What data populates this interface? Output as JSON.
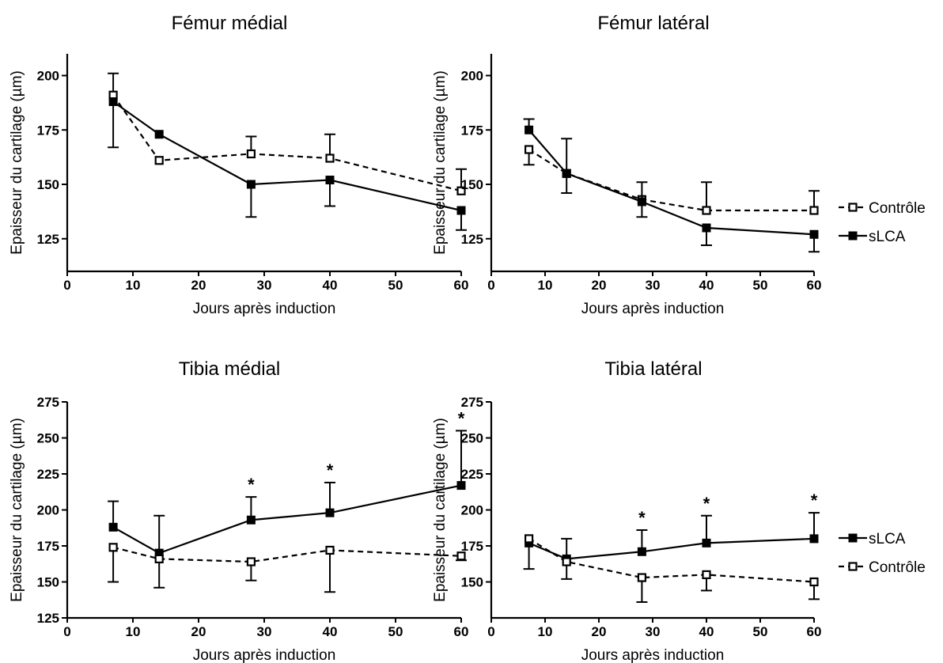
{
  "chart_data": [
    {
      "type": "line",
      "title": "Fémur médial",
      "xlabel": "Jours après induction",
      "ylabel": "Epaisseur du cartilage (µm)",
      "xlim": [
        0,
        60
      ],
      "ylim": [
        110,
        210
      ],
      "xticks": [
        0,
        10,
        20,
        30,
        40,
        50,
        60
      ],
      "yticks": [
        125,
        150,
        175,
        200
      ],
      "series": [
        {
          "name": "Contrôle",
          "marker": "open-square",
          "line": "dashed",
          "x": [
            7,
            14,
            28,
            40,
            60
          ],
          "y": [
            191,
            161,
            164,
            162,
            147
          ],
          "err_up": [
            10,
            0,
            8,
            11,
            10
          ],
          "err_down": [
            0,
            0,
            0,
            0,
            0
          ]
        },
        {
          "name": "sLCA",
          "marker": "filled-square",
          "line": "solid",
          "x": [
            7,
            14,
            28,
            40,
            60
          ],
          "y": [
            188,
            173,
            150,
            152,
            138
          ],
          "err_up": [
            0,
            0,
            0,
            0,
            0
          ],
          "err_down": [
            21,
            0,
            15,
            12,
            9
          ]
        }
      ],
      "annotations": []
    },
    {
      "type": "line",
      "title": "Fémur latéral",
      "xlabel": "Jours après induction",
      "ylabel": "Epaisseur du cartilage (µm)",
      "xlim": [
        0,
        60
      ],
      "ylim": [
        110,
        210
      ],
      "xticks": [
        0,
        10,
        20,
        30,
        40,
        50,
        60
      ],
      "yticks": [
        125,
        150,
        175,
        200
      ],
      "series": [
        {
          "name": "Contrôle",
          "marker": "open-square",
          "line": "dashed",
          "x": [
            7,
            14,
            28,
            40,
            60
          ],
          "y": [
            166,
            155,
            143,
            138,
            138
          ],
          "err_up": [
            0,
            0,
            0,
            13,
            9
          ],
          "err_down": [
            7,
            0,
            0,
            0,
            0
          ]
        },
        {
          "name": "sLCA",
          "marker": "filled-square",
          "line": "solid",
          "x": [
            7,
            14,
            28,
            40,
            60
          ],
          "y": [
            175,
            155,
            142,
            130,
            127
          ],
          "err_up": [
            5,
            16,
            9,
            0,
            0
          ],
          "err_down": [
            0,
            9,
            7,
            8,
            8
          ]
        }
      ],
      "annotations": []
    },
    {
      "type": "line",
      "title": "Tibia médial",
      "xlabel": "Jours après induction",
      "ylabel": "Epaisseur du cartilage (µm)",
      "xlim": [
        0,
        60
      ],
      "ylim": [
        125,
        275
      ],
      "xticks": [
        0,
        10,
        20,
        30,
        40,
        50,
        60
      ],
      "yticks": [
        125,
        150,
        175,
        200,
        225,
        250,
        275
      ],
      "series": [
        {
          "name": "sLCA",
          "marker": "filled-square",
          "line": "solid",
          "x": [
            7,
            14,
            28,
            40,
            60
          ],
          "y": [
            188,
            170,
            193,
            198,
            217
          ],
          "err_up": [
            18,
            26,
            16,
            21,
            38
          ],
          "err_down": [
            0,
            0,
            0,
            0,
            0
          ]
        },
        {
          "name": "Contrôle",
          "marker": "open-square",
          "line": "dashed",
          "x": [
            7,
            14,
            28,
            40,
            60
          ],
          "y": [
            174,
            166,
            164,
            172,
            168
          ],
          "err_up": [
            0,
            0,
            0,
            0,
            0
          ],
          "err_down": [
            24,
            20,
            13,
            29,
            3
          ]
        }
      ],
      "annotations": [
        {
          "text": "*",
          "x": 28
        },
        {
          "text": "*",
          "x": 40
        },
        {
          "text": "*",
          "x": 60
        }
      ]
    },
    {
      "type": "line",
      "title": "Tibia latéral",
      "xlabel": "Jours après induction",
      "ylabel": "Epaisseur du cartilage (µm)",
      "xlim": [
        0,
        60
      ],
      "ylim": [
        125,
        275
      ],
      "xticks": [
        0,
        10,
        20,
        30,
        40,
        50,
        60
      ],
      "yticks": [
        150,
        175,
        200,
        225,
        250,
        275
      ],
      "series": [
        {
          "name": "sLCA",
          "marker": "filled-square",
          "line": "solid",
          "x": [
            7,
            14,
            28,
            40,
            60
          ],
          "y": [
            177,
            166,
            171,
            177,
            180
          ],
          "err_up": [
            0,
            14,
            15,
            19,
            18
          ],
          "err_down": [
            18,
            0,
            0,
            0,
            0
          ]
        },
        {
          "name": "Contrôle",
          "marker": "open-square",
          "line": "dashed",
          "x": [
            7,
            14,
            28,
            40,
            60
          ],
          "y": [
            180,
            164,
            153,
            155,
            150
          ],
          "err_up": [
            0,
            0,
            0,
            0,
            0
          ],
          "err_down": [
            0,
            12,
            17,
            11,
            12
          ]
        }
      ],
      "annotations": [
        {
          "text": "*",
          "x": 28
        },
        {
          "text": "*",
          "x": 40
        },
        {
          "text": "*",
          "x": 60
        }
      ]
    }
  ],
  "legends": [
    {
      "items": [
        {
          "label": "Contrôle",
          "marker": "open-square",
          "line": "dashed"
        },
        {
          "label": "sLCA",
          "marker": "filled-square",
          "line": "solid"
        }
      ]
    },
    {
      "items": [
        {
          "label": "sLCA",
          "marker": "filled-square",
          "line": "solid"
        },
        {
          "label": "Contrôle",
          "marker": "open-square",
          "line": "dashed"
        }
      ]
    }
  ]
}
